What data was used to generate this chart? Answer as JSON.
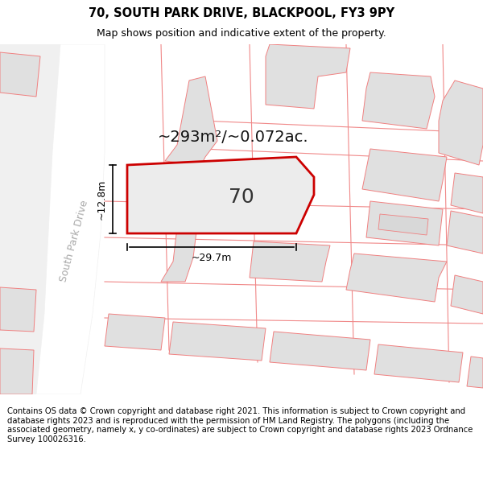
{
  "title_line1": "70, SOUTH PARK DRIVE, BLACKPOOL, FY3 9PY",
  "title_line2": "Map shows position and indicative extent of the property.",
  "footer_text": "Contains OS data © Crown copyright and database right 2021. This information is subject to Crown copyright and database rights 2023 and is reproduced with the permission of HM Land Registry. The polygons (including the associated geometry, namely x, y co-ordinates) are subject to Crown copyright and database rights 2023 Ordnance Survey 100026316.",
  "area_label": "~293m²/~0.072ac.",
  "plot_number": "70",
  "width_label": "~29.7m",
  "height_label": "~12.8m",
  "road_label": "South Park Drive",
  "map_bg": "#ffffff",
  "plot_fill": "#e8e8e8",
  "plot_edge": "#cc0000",
  "other_plot_fill": "#e0e0e0",
  "other_plot_edge": "#f08080",
  "road_color": "#ffffff",
  "title_fontsize": 10.5,
  "subtitle_fontsize": 9,
  "footer_fontsize": 7.2,
  "area_fontsize": 14,
  "plot_num_fontsize": 18,
  "dim_fontsize": 9,
  "road_label_fontsize": 9
}
